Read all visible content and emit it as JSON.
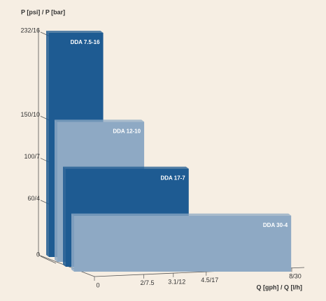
{
  "chart_data": {
    "type": "step-bar",
    "ylabel": "P [psi] / P [bar]",
    "xlabel": "Q [gph] / Q [l/h]",
    "categories": [
      "DDA 7.5-16",
      "DDA 12-10",
      "DDA 17-7",
      "DDA 30-4"
    ],
    "values": [
      16,
      10,
      7,
      4
    ],
    "x": [
      7.5,
      12,
      17,
      30
    ],
    "colors": [
      "#1e5b92",
      "#8ea9c4",
      "#1e5b92",
      "#8ea9c4"
    ],
    "ylim": [
      0,
      16
    ],
    "yticks": [
      {
        "value": 16,
        "label": "232/16"
      },
      {
        "value": 10,
        "label": "150/10"
      },
      {
        "value": 7,
        "label": "100/7"
      },
      {
        "value": 4,
        "label": "60/4"
      },
      0
    ],
    "xlim": [
      0,
      30
    ],
    "xticks": [
      0,
      {
        "value": 7.5,
        "label": "2/7.5"
      },
      {
        "value": 12,
        "label": "3.1/12"
      },
      {
        "value": 17,
        "label": "4.5/17"
      },
      {
        "value": 30,
        "label": "8/30"
      }
    ]
  }
}
